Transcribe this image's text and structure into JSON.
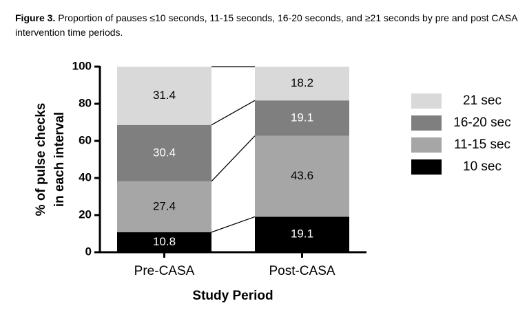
{
  "chart_data": {
    "type": "stacked_bar",
    "figure_label": "Figure 3.",
    "title": "Proportion of pauses ≤10 seconds, 11-15 seconds, 16-20 seconds, and ≥21 seconds by pre and post CASA intervention time periods.",
    "xlabel": "Study Period",
    "ylabel": [
      "% of pulse checks",
      "in each interval"
    ],
    "categories": [
      "Pre-CASA",
      "Post-CASA"
    ],
    "series": [
      {
        "name": "10 sec",
        "color": "#000000",
        "values": [
          10.8,
          19.1
        ]
      },
      {
        "name": "11-15 sec",
        "color": "#a6a6a6",
        "values": [
          27.4,
          43.6
        ]
      },
      {
        "name": "16-20 sec",
        "color": "#7f7f7f",
        "values": [
          30.4,
          19.1
        ]
      },
      {
        "name": "21 sec",
        "color": "#d9d9d9",
        "values": [
          31.4,
          18.2
        ]
      }
    ],
    "ylim": [
      0,
      100
    ],
    "yticks": [
      0,
      20,
      40,
      60,
      80,
      100
    ],
    "legend": "right",
    "connectors": true
  }
}
